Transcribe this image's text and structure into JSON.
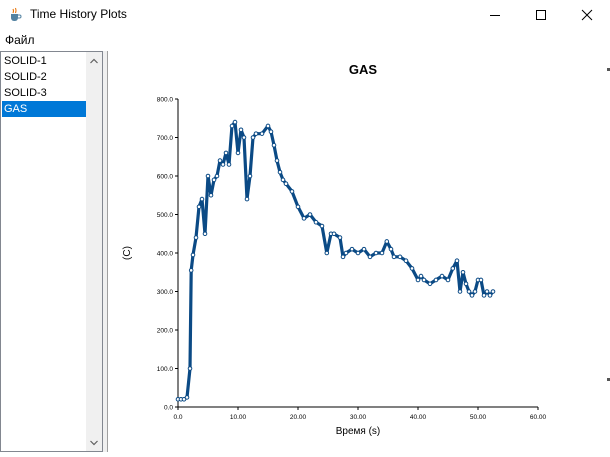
{
  "window": {
    "title": "Time History Plots",
    "icon": "java-cup-icon",
    "controls": [
      "minimize",
      "maximize",
      "close"
    ]
  },
  "menu": {
    "items": [
      "Файл"
    ]
  },
  "list": {
    "items": [
      "SOLID-1",
      "SOLID-2",
      "SOLID-3",
      "GAS"
    ],
    "selected": "GAS"
  },
  "chart_data": {
    "type": "line",
    "title": "GAS",
    "xlabel": "Время (s)",
    "ylabel": "(C)",
    "xlim": [
      0,
      60
    ],
    "ylim": [
      0,
      800
    ],
    "xticks": [
      "0.0",
      "10.00",
      "20.00",
      "30.00",
      "40.00",
      "50.00",
      "60.00"
    ],
    "yticks": [
      "0.0",
      "100.0",
      "200.0",
      "300.0",
      "400.0",
      "500.0",
      "600.0",
      "700.0",
      "800.0"
    ],
    "grid": false,
    "color": "#0b4a85",
    "series": [
      {
        "x": [
          0.0,
          0.5,
          1.0,
          1.5,
          2.0,
          2.2,
          2.5,
          3.0,
          3.5,
          4.0,
          4.5,
          5.0,
          5.5,
          6.0,
          6.5,
          7.0,
          7.5,
          8.0,
          8.5,
          9.0,
          9.5,
          10.0,
          10.5,
          11.0,
          11.5,
          12.0,
          12.5,
          13.0,
          14.0,
          15.0,
          15.5,
          16.0,
          16.5,
          17.0,
          17.5,
          18.0,
          19.0,
          20.0,
          21.0,
          22.0,
          23.0,
          24.0,
          24.8,
          25.5,
          26.0,
          27.0,
          27.5,
          28.0,
          29.0,
          30.0,
          31.0,
          32.0,
          33.0,
          34.0,
          34.8,
          35.5,
          36.0,
          37.0,
          38.0,
          39.0,
          40.0,
          40.5,
          41.0,
          42.0,
          43.0,
          44.0,
          45.0,
          45.8,
          46.5,
          47.0,
          47.5,
          48.0,
          48.5,
          49.0,
          49.5,
          50.0,
          50.5,
          51.0,
          51.5,
          52.0,
          52.5
        ],
        "y": [
          20,
          20,
          20,
          25,
          100,
          355,
          395,
          440,
          520,
          540,
          450,
          600,
          550,
          590,
          600,
          640,
          630,
          660,
          630,
          730,
          740,
          660,
          720,
          700,
          540,
          600,
          700,
          710,
          710,
          730,
          715,
          680,
          640,
          610,
          590,
          580,
          560,
          520,
          490,
          500,
          480,
          470,
          400,
          450,
          450,
          440,
          390,
          400,
          410,
          400,
          410,
          390,
          400,
          400,
          430,
          410,
          390,
          390,
          380,
          360,
          330,
          340,
          330,
          320,
          330,
          340,
          330,
          360,
          380,
          300,
          350,
          320,
          300,
          290,
          300,
          330,
          330,
          290,
          300,
          290,
          300
        ]
      }
    ]
  }
}
